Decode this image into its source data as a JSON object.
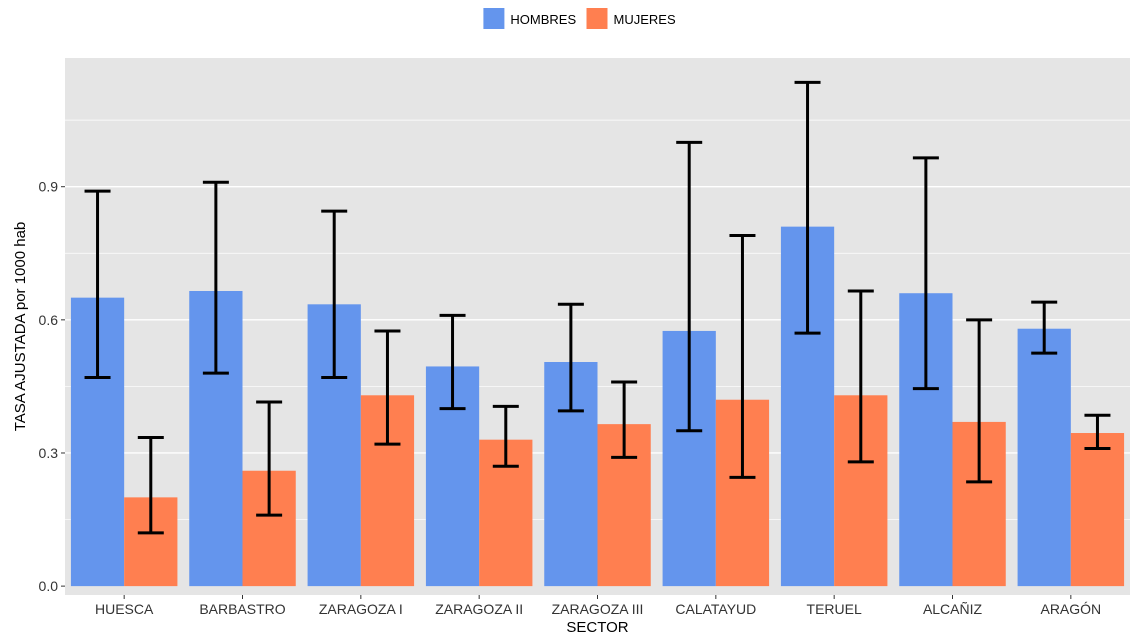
{
  "chart_data": {
    "type": "bar",
    "title": "",
    "xlabel": "SECTOR",
    "ylabel": "TASA AJUSTADA por 1000 hab",
    "ylim": [
      -0.02,
      1.19
    ],
    "yticks": [
      0.0,
      0.3,
      0.6,
      0.9
    ],
    "ytick_labels": [
      "0.0",
      "0.3",
      "0.6",
      "0.9"
    ],
    "grid": true,
    "legend_position": "top",
    "categories": [
      "HUESCA",
      "BARBASTRO",
      "ZARAGOZA I",
      "ZARAGOZA II",
      "ZARAGOZA III",
      "CALATAYUD",
      "TERUEL",
      "ALCAÑIZ",
      "ARAGÓN"
    ],
    "series": [
      {
        "name": "HOMBRES",
        "color": "#6495ED",
        "values": [
          0.65,
          0.665,
          0.635,
          0.495,
          0.505,
          0.575,
          0.81,
          0.66,
          0.58
        ],
        "lower": [
          0.47,
          0.48,
          0.47,
          0.4,
          0.395,
          0.35,
          0.57,
          0.445,
          0.525
        ],
        "upper": [
          0.89,
          0.91,
          0.845,
          0.61,
          0.635,
          1.0,
          1.135,
          0.965,
          0.64
        ]
      },
      {
        "name": "MUJERES",
        "color": "#FF7F50",
        "values": [
          0.2,
          0.26,
          0.43,
          0.33,
          0.365,
          0.42,
          0.43,
          0.37,
          0.345
        ],
        "lower": [
          0.12,
          0.16,
          0.32,
          0.27,
          0.29,
          0.245,
          0.28,
          0.235,
          0.31
        ],
        "upper": [
          0.335,
          0.415,
          0.575,
          0.405,
          0.46,
          0.79,
          0.665,
          0.6,
          0.385
        ]
      }
    ]
  }
}
